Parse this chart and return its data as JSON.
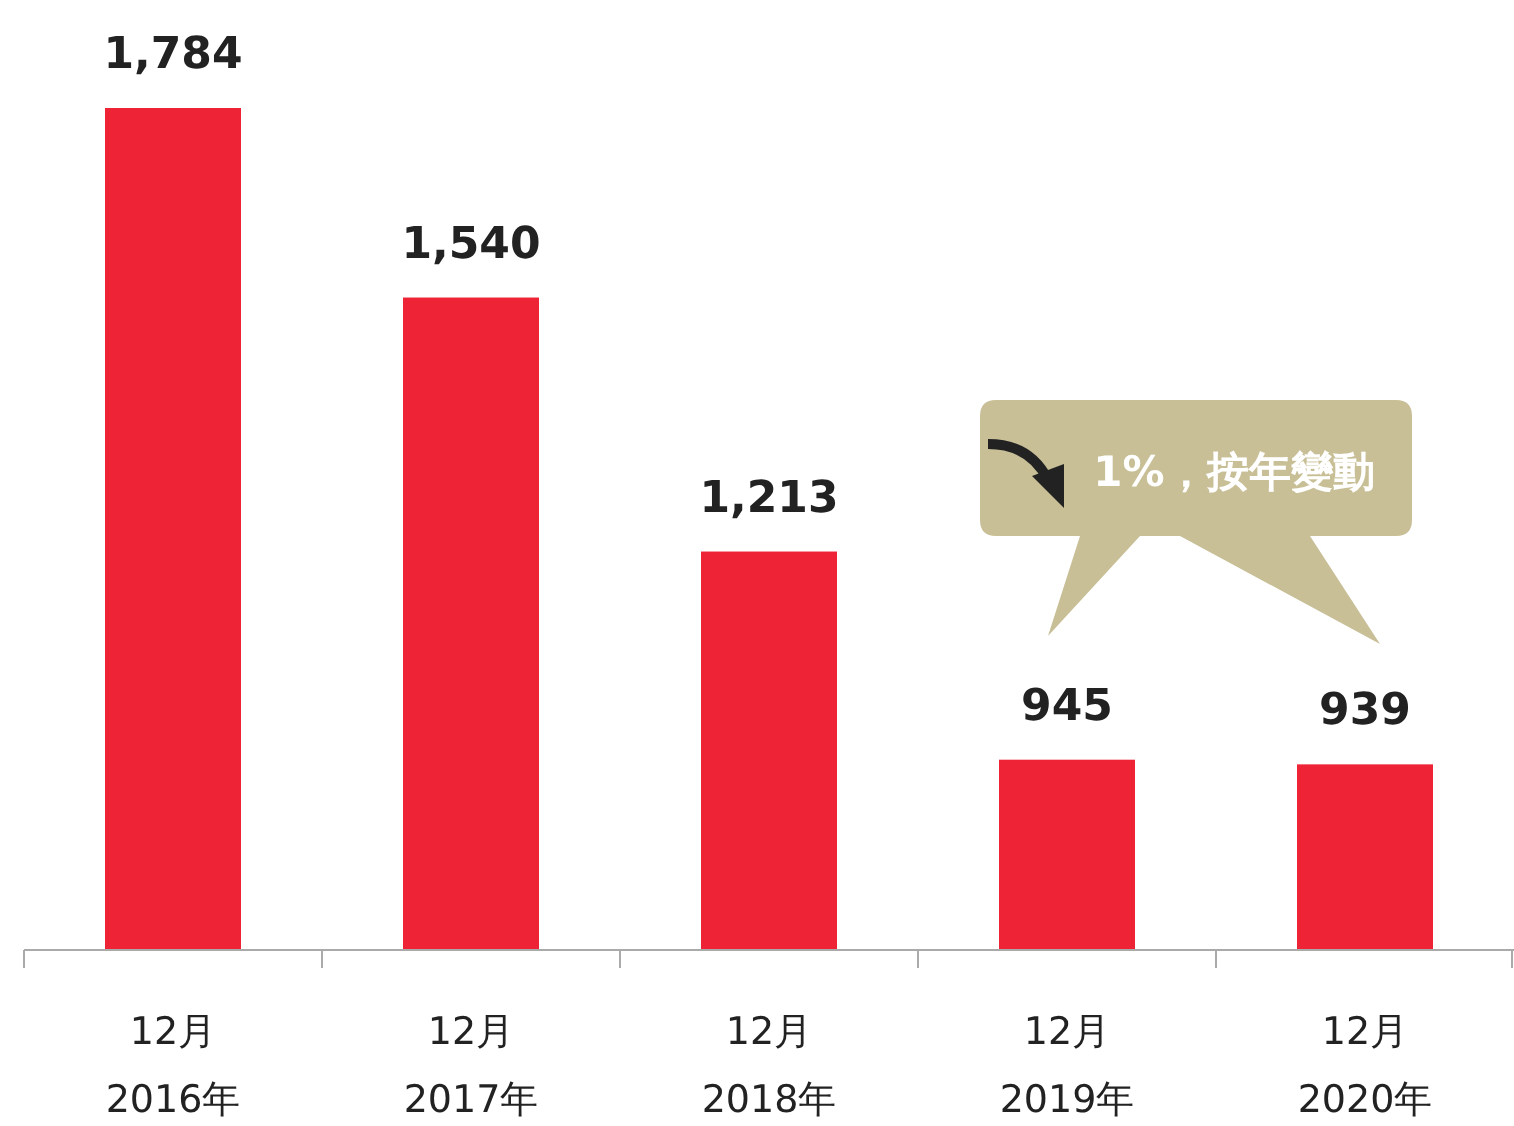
{
  "chart_data": {
    "type": "bar",
    "categories": [
      "12月\n2016年",
      "12月\n2017年",
      "12月\n2018年",
      "12月\n2019年",
      "12月\n2020年"
    ],
    "values": [
      1784,
      1540,
      1213,
      945,
      939
    ],
    "value_labels": [
      "1,784",
      "1,540",
      "1,213",
      "945",
      "939"
    ],
    "color": "#ee2436",
    "ylim": [
      700,
      1784
    ],
    "annotations": [
      "1%，按年變動"
    ]
  }
}
